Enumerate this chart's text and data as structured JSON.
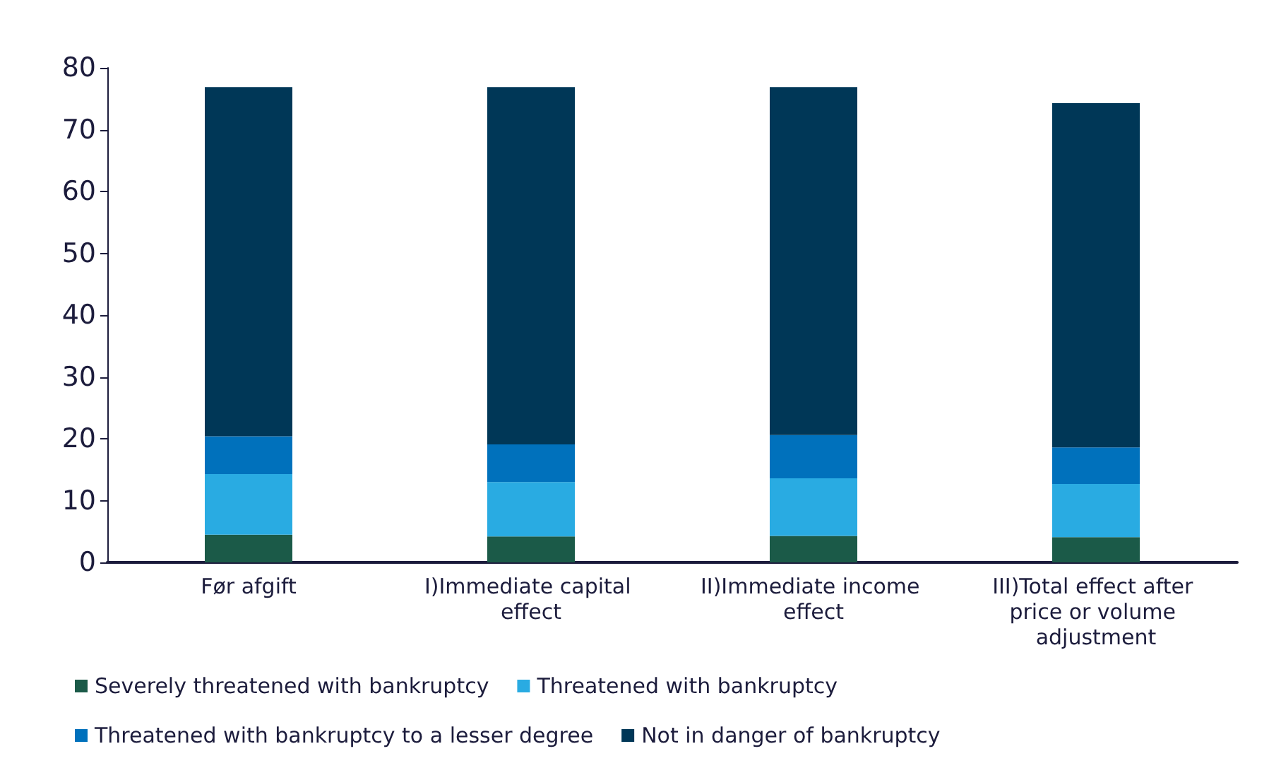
{
  "chart_data": {
    "type": "bar",
    "stacked": true,
    "categories": [
      "Før afgift",
      "I)Immediate capital effect",
      "II)Immediate income effect",
      "III)Total effect after price or volume adjustment"
    ],
    "series": [
      {
        "name": "Severely threatened with bankruptcy",
        "color": "#1b5a48",
        "values": [
          4.5,
          4.2,
          4.3,
          4.1
        ]
      },
      {
        "name": "Threatened with bankruptcy",
        "color": "#29abe2",
        "values": [
          9.8,
          8.8,
          9.3,
          8.6
        ]
      },
      {
        "name": "Threatened with bankruptcy to a lesser degree",
        "color": "#0071bc",
        "values": [
          6.1,
          6.1,
          7.0,
          5.9
        ]
      },
      {
        "name": "Not in danger of bankruptcy",
        "color": "#003757",
        "values": [
          56.5,
          57.8,
          56.3,
          55.7
        ]
      }
    ],
    "ylim": [
      0,
      80
    ],
    "yticks": [
      0,
      10,
      20,
      30,
      40,
      50,
      60,
      70,
      80
    ],
    "grid": false,
    "legend": "bottom"
  }
}
